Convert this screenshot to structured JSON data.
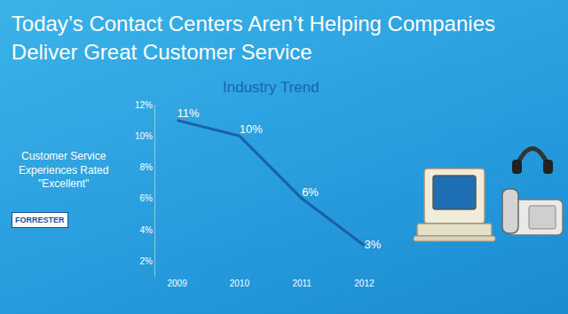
{
  "chart_data": {
    "type": "line",
    "title": "Today’s Contact Centers Aren’t Helping Companies Deliver Great Customer Service",
    "subtitle": "Industry Trend",
    "ylabel": "Customer Service Experiences Rated \"Excellent\"",
    "annotations": [
      "FORRESTER"
    ],
    "categories": [
      "2009",
      "2010",
      "2011",
      "2012"
    ],
    "values": [
      11,
      10,
      6,
      3
    ],
    "value_labels": [
      "11%",
      "10%",
      "6%",
      "3%"
    ],
    "color": "#1d5fa6",
    "marker": "none",
    "data_labels": true,
    "ylim": [
      1,
      12
    ],
    "yticks": [
      {
        "value": 2,
        "label": "2%"
      },
      {
        "value": 4,
        "label": "4%"
      },
      {
        "value": 6,
        "label": "6%"
      },
      {
        "value": 8,
        "label": "8%"
      },
      {
        "value": 10,
        "label": "10%"
      },
      {
        "value": 12,
        "label": "12%"
      }
    ],
    "grid": false
  }
}
